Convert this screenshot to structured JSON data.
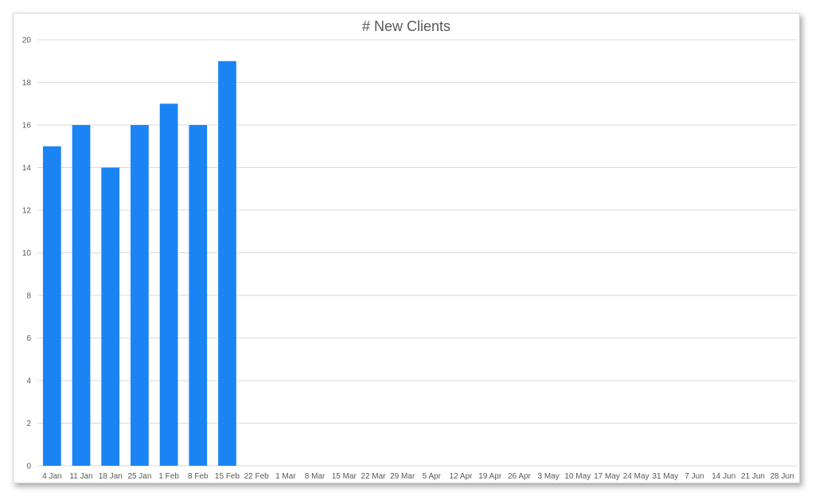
{
  "chart_data": {
    "type": "bar",
    "title": "# New Clients",
    "xlabel": "",
    "ylabel": "",
    "categories": [
      "4 Jan",
      "11 Jan",
      "18 Jan",
      "25 Jan",
      "1 Feb",
      "8 Feb",
      "15 Feb",
      "22 Feb",
      "1 Mar",
      "8 Mar",
      "15 Mar",
      "22 Mar",
      "29 Mar",
      "5 Apr",
      "12 Apr",
      "19 Apr",
      "26 Apr",
      "3 May",
      "10 May",
      "17 May",
      "24 May",
      "31 May",
      "7 Jun",
      "14 Jun",
      "21 Jun",
      "28 Jun"
    ],
    "values": [
      15,
      16,
      14,
      16,
      17,
      16,
      19,
      null,
      null,
      null,
      null,
      null,
      null,
      null,
      null,
      null,
      null,
      null,
      null,
      null,
      null,
      null,
      null,
      null,
      null,
      null
    ],
    "ylim": [
      0,
      20
    ],
    "yticks": [
      0,
      2,
      4,
      6,
      8,
      10,
      12,
      14,
      16,
      18,
      20
    ],
    "grid": true,
    "legend": "none",
    "bar_color": "#1a84f5",
    "grid_color": "#d9d9d9"
  }
}
